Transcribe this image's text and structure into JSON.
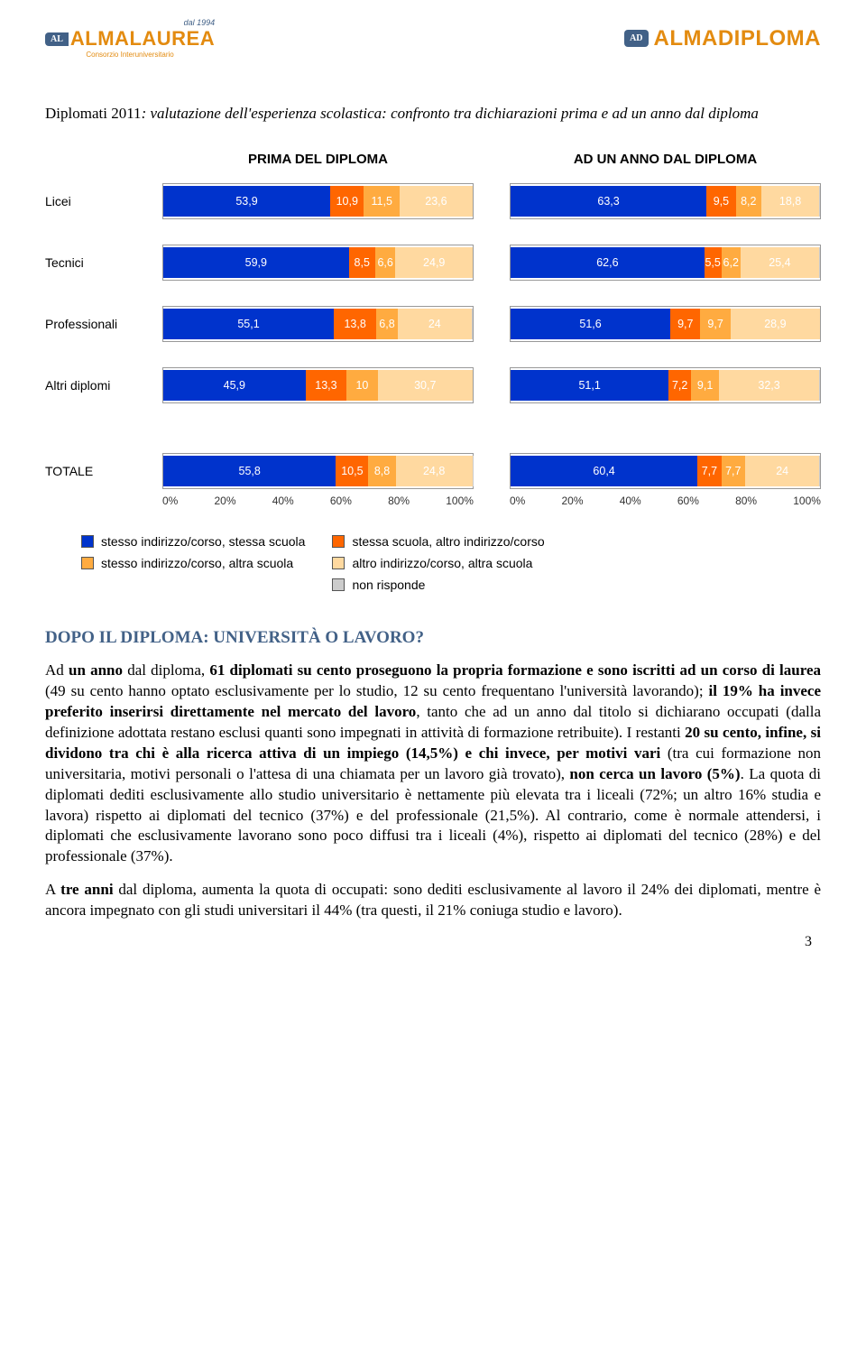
{
  "logos": {
    "left_since": "dal 1994",
    "left_badge": "AL",
    "left_name": "ALMALAUREA",
    "left_sub": "Consorzio Interuniversitario",
    "right_badge": "AD",
    "right_name": "ALMADIPLOMA"
  },
  "chart": {
    "title_html": "Diplomati 2011: valutazione dell'esperienza scolastica: confronto tra dichiarazioni prima e ad un anno dal diploma",
    "header_left": "PRIMA DEL DIPLOMA",
    "header_right": "AD UN ANNO DAL DIPLOMA",
    "colors": {
      "blue": "#0033cc",
      "orange1": "#ff6600",
      "orange2": "#ffab40",
      "orange3": "#ffd9a0",
      "grey": "#cccccc"
    },
    "rows": [
      {
        "label": "Licei",
        "left": [
          {
            "v": 53.9,
            "c": "blue"
          },
          {
            "v": 10.9,
            "c": "orange1"
          },
          {
            "v": 11.5,
            "c": "orange2"
          },
          {
            "v": 23.6,
            "c": "orange3"
          }
        ],
        "right": [
          {
            "v": 63.3,
            "c": "blue"
          },
          {
            "v": 9.5,
            "c": "orange1"
          },
          {
            "v": 8.2,
            "c": "orange2"
          },
          {
            "v": 18.8,
            "c": "orange3"
          }
        ]
      },
      {
        "label": "Tecnici",
        "left": [
          {
            "v": 59.9,
            "c": "blue"
          },
          {
            "v": 8.5,
            "c": "orange1"
          },
          {
            "v": 6.6,
            "c": "orange2"
          },
          {
            "v": 24.9,
            "c": "orange3"
          }
        ],
        "right": [
          {
            "v": 62.6,
            "c": "blue"
          },
          {
            "v": 5.5,
            "c": "orange1"
          },
          {
            "v": 6.2,
            "c": "orange2"
          },
          {
            "v": 25.4,
            "c": "orange3"
          }
        ]
      },
      {
        "label": "Professionali",
        "left": [
          {
            "v": 55.1,
            "c": "blue"
          },
          {
            "v": 13.8,
            "c": "orange1"
          },
          {
            "v": 6.8,
            "c": "orange2"
          },
          {
            "v": 24.0,
            "c": "orange3"
          }
        ],
        "right": [
          {
            "v": 51.6,
            "c": "blue"
          },
          {
            "v": 9.7,
            "c": "orange1"
          },
          {
            "v": 9.7,
            "c": "orange2"
          },
          {
            "v": 28.9,
            "c": "orange3"
          }
        ]
      },
      {
        "label": "Altri diplomi",
        "left": [
          {
            "v": 45.9,
            "c": "blue"
          },
          {
            "v": 13.3,
            "c": "orange1"
          },
          {
            "v": 10.0,
            "c": "orange2"
          },
          {
            "v": 30.7,
            "c": "orange3"
          }
        ],
        "right": [
          {
            "v": 51.1,
            "c": "blue"
          },
          {
            "v": 7.2,
            "c": "orange1"
          },
          {
            "v": 9.1,
            "c": "orange2"
          },
          {
            "v": 32.3,
            "c": "orange3"
          }
        ]
      }
    ],
    "totale": {
      "label": "TOTALE",
      "left": [
        {
          "v": 55.8,
          "c": "blue"
        },
        {
          "v": 10.5,
          "c": "orange1"
        },
        {
          "v": 8.8,
          "c": "orange2"
        },
        {
          "v": 24.8,
          "c": "orange3"
        }
      ],
      "right": [
        {
          "v": 60.4,
          "c": "blue"
        },
        {
          "v": 7.7,
          "c": "orange1"
        },
        {
          "v": 7.7,
          "c": "orange2"
        },
        {
          "v": 24.0,
          "c": "orange3"
        }
      ]
    },
    "x_ticks": [
      "0%",
      "20%",
      "40%",
      "60%",
      "80%",
      "100%"
    ],
    "legend": {
      "col1": [
        {
          "c": "blue",
          "t": "stesso indirizzo/corso, stessa scuola"
        },
        {
          "c": "orange2",
          "t": "stesso indirizzo/corso, altra scuola"
        }
      ],
      "col2": [
        {
          "c": "orange1",
          "t": "stessa scuola, altro indirizzo/corso"
        },
        {
          "c": "orange3",
          "t": "altro indirizzo/corso, altra scuola"
        },
        {
          "c": "grey",
          "t": "non risponde"
        }
      ]
    }
  },
  "section_heading": "DOPO IL DIPLOMA: UNIVERSITÀ O LAVORO?",
  "paragraphs": [
    "Ad <b>un anno</b> dal diploma, <b>61 diplomati su cento proseguono la propria formazione e sono iscritti ad un corso di laurea</b> (49 su cento hanno optato esclusivamente per lo studio, 12 su cento frequentano l'università lavorando); <b>il 19% ha invece preferito inserirsi direttamente nel mercato del lavoro</b>, tanto che ad un anno dal titolo si dichiarano occupati (dalla definizione adottata restano esclusi quanti sono impegnati in attività di formazione retribuite). I restanti <b>20 su cento, infine, si dividono tra chi è alla ricerca attiva di un impiego (14,5%) e chi invece, per motivi vari</b> (tra cui formazione non universitaria, motivi personali o l'attesa di una chiamata per un lavoro già trovato), <b>non cerca un lavoro (5%)</b>. La quota di diplomati dediti esclusivamente allo studio universitario è nettamente più elevata tra i liceali (72%; un altro 16% studia e lavora) rispetto ai diplomati del tecnico (37%) e del professionale (21,5%). Al contrario, come è normale attendersi, i diplomati che esclusivamente lavorano sono poco diffusi tra i liceali (4%), rispetto ai diplomati del tecnico (28%) e del professionale (37%).",
    "A <b>tre anni</b> dal diploma, aumenta la quota di occupati: sono dediti esclusivamente al lavoro il 24% dei diplomati, mentre è ancora impegnato con gli studi universitari il 44% (tra questi, il 21% coniuga studio e lavoro)."
  ],
  "page_number": "3"
}
